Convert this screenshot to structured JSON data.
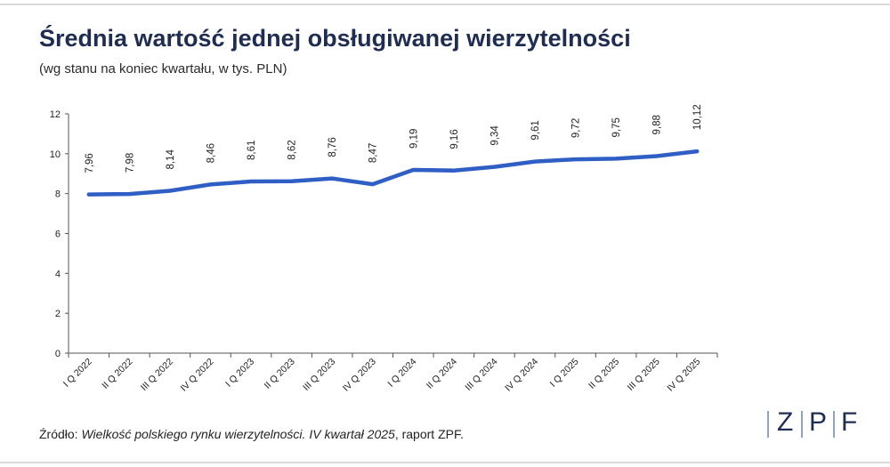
{
  "header": {
    "title": "Średnia wartość jednej obsługiwanej wierzytelności",
    "subtitle": "(wg stanu na koniec kwartału, w tys. PLN)"
  },
  "source": {
    "prefix": "Źródło: ",
    "italic": "Wielkość polskiego rynku wierzytelności. IV kwartał 2025",
    "suffix": ", raport ZPF."
  },
  "logo": {
    "letters": [
      "Z",
      "P",
      "F"
    ]
  },
  "chart_data": {
    "type": "line",
    "categories": [
      "I Q 2022",
      "II Q 2022",
      "III Q 2022",
      "IV Q 2022",
      "I Q 2023",
      "II Q 2023",
      "III Q 2023",
      "IV Q 2023",
      "I Q 2024",
      "II Q 2024",
      "III Q 2024",
      "IV Q 2024",
      "I Q 2025",
      "II Q 2025",
      "III Q 2025",
      "IV Q 2025"
    ],
    "values": [
      7.96,
      7.98,
      8.14,
      8.46,
      8.61,
      8.62,
      8.76,
      8.47,
      9.19,
      9.16,
      9.34,
      9.61,
      9.72,
      9.75,
      9.88,
      10.12
    ],
    "data_labels": [
      "7,96",
      "7,98",
      "8,14",
      "8,46",
      "8,61",
      "8,62",
      "8,76",
      "8,47",
      "9,19",
      "9,16",
      "9,34",
      "9,61",
      "9,72",
      "9,75",
      "9,88",
      "10,12"
    ],
    "yticks": [
      0,
      2,
      4,
      6,
      8,
      10,
      12
    ],
    "ylim": [
      0,
      12
    ],
    "grid": false,
    "legend": "none",
    "line_color": "#2f5fc4"
  }
}
